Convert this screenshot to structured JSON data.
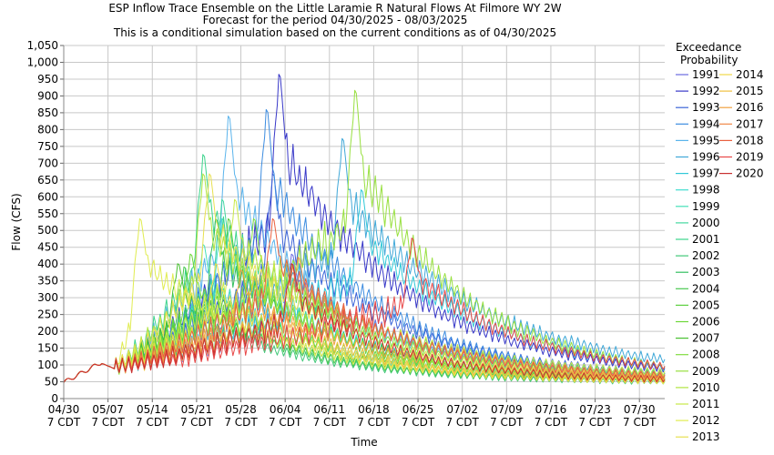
{
  "chart_data": {
    "type": "line",
    "title": "ESP Inflow Trace Ensemble on the Little Laramie R Natural Flows At Filmore WY 2W",
    "subtitle": "Forecast for the period 04/30/2025 - 08/03/2025",
    "subtitle2": "This is a conditional simulation based on the current conditions as of 04/30/2025",
    "xlabel": "Time",
    "ylabel": "Flow (CFS)",
    "xlim": [
      "04/30",
      "08/03"
    ],
    "ylim": [
      0,
      1050
    ],
    "y_ticks": [
      0,
      50,
      100,
      150,
      200,
      250,
      300,
      350,
      400,
      450,
      500,
      550,
      600,
      650,
      700,
      750,
      800,
      850,
      900,
      950,
      1000,
      1050
    ],
    "y_tick_labels": [
      "0",
      "50",
      "100",
      "150",
      "200",
      "250",
      "300",
      "350",
      "400",
      "450",
      "500",
      "550",
      "600",
      "650",
      "700",
      "750",
      "800",
      "850",
      "900",
      "950",
      "1,000",
      "1,050"
    ],
    "x_ticks": [
      {
        "day": 0,
        "label": "04/30",
        "label2": "7 CDT"
      },
      {
        "day": 7,
        "label": "05/07",
        "label2": "7 CDT"
      },
      {
        "day": 14,
        "label": "05/14",
        "label2": "7 CDT"
      },
      {
        "day": 21,
        "label": "05/21",
        "label2": "7 CDT"
      },
      {
        "day": 28,
        "label": "05/28",
        "label2": "7 CDT"
      },
      {
        "day": 35,
        "label": "06/04",
        "label2": "7 CDT"
      },
      {
        "day": 42,
        "label": "06/11",
        "label2": "7 CDT"
      },
      {
        "day": 49,
        "label": "06/18",
        "label2": "7 CDT"
      },
      {
        "day": 56,
        "label": "06/25",
        "label2": "7 CDT"
      },
      {
        "day": 63,
        "label": "07/02",
        "label2": "7 CDT"
      },
      {
        "day": 70,
        "label": "07/09",
        "label2": "7 CDT"
      },
      {
        "day": 77,
        "label": "07/16",
        "label2": "7 CDT"
      },
      {
        "day": 84,
        "label": "07/23",
        "label2": "7 CDT"
      },
      {
        "day": 91,
        "label": "07/30",
        "label2": "7 CDT"
      }
    ],
    "x_max_day": 95,
    "grid": true,
    "legend_title": [
      "Exceedance",
      "Probability"
    ],
    "legend_placement": "right",
    "series": [
      {
        "name": "1991",
        "color": "#6a6ae0",
        "peak_day": 36,
        "peak": 450,
        "start": 95,
        "end": 55
      },
      {
        "name": "1992",
        "color": "#3838c8",
        "peak_day": 34,
        "peak": 1010,
        "start": 95,
        "end": 55
      },
      {
        "name": "1993",
        "color": "#3c64d8",
        "peak_day": 33,
        "peak": 700,
        "start": 95,
        "end": 60
      },
      {
        "name": "1994",
        "color": "#3c8ce0",
        "peak_day": 32,
        "peak": 900,
        "start": 95,
        "end": 55
      },
      {
        "name": "1995",
        "color": "#5ab4ec",
        "peak_day": 26,
        "peak": 880,
        "start": 95,
        "end": 60
      },
      {
        "name": "1996",
        "color": "#40a8d8",
        "peak_day": 44,
        "peak": 810,
        "start": 95,
        "end": 60
      },
      {
        "name": "1997",
        "color": "#30c8d8",
        "peak_day": 47,
        "peak": 650,
        "start": 95,
        "end": 55
      },
      {
        "name": "1998",
        "color": "#40dcd0",
        "peak_day": 25,
        "peak": 560,
        "start": 95,
        "end": 50
      },
      {
        "name": "1999",
        "color": "#44e0b8",
        "peak_day": 22,
        "peak": 480,
        "start": 95,
        "end": 50
      },
      {
        "name": "2000",
        "color": "#44d8a0",
        "peak_day": 25,
        "peak": 620,
        "start": 95,
        "end": 50
      },
      {
        "name": "2001",
        "color": "#3cd48c",
        "peak_day": 22,
        "peak": 760,
        "start": 95,
        "end": 55
      },
      {
        "name": "2002",
        "color": "#40c878",
        "peak_day": 20,
        "peak": 320,
        "start": 95,
        "end": 45
      },
      {
        "name": "2003",
        "color": "#34c060",
        "peak_day": 24,
        "peak": 560,
        "start": 95,
        "end": 55
      },
      {
        "name": "2004",
        "color": "#4ac850",
        "peak_day": 19,
        "peak": 410,
        "start": 95,
        "end": 50
      },
      {
        "name": "2005",
        "color": "#5cd040",
        "peak_day": 26,
        "peak": 560,
        "start": 95,
        "end": 55
      },
      {
        "name": "2006",
        "color": "#6cd838",
        "peak_day": 20,
        "peak": 450,
        "start": 95,
        "end": 50
      },
      {
        "name": "2007",
        "color": "#48c030",
        "peak_day": 18,
        "peak": 420,
        "start": 95,
        "end": 50
      },
      {
        "name": "2008",
        "color": "#80dc40",
        "peak_day": 30,
        "peak": 560,
        "start": 95,
        "end": 55
      },
      {
        "name": "2009",
        "color": "#98e040",
        "peak_day": 46,
        "peak": 960,
        "start": 95,
        "end": 55
      },
      {
        "name": "2010",
        "color": "#b0e440",
        "peak_day": 22,
        "peak": 700,
        "start": 95,
        "end": 55
      },
      {
        "name": "2011",
        "color": "#c8e848",
        "peak_day": 27,
        "peak": 620,
        "start": 95,
        "end": 60
      },
      {
        "name": "2012",
        "color": "#e0ec50",
        "peak_day": 12,
        "peak": 560,
        "start": 95,
        "end": 45
      },
      {
        "name": "2013",
        "color": "#e8e050",
        "peak_day": 23,
        "peak": 700,
        "start": 95,
        "end": 55
      },
      {
        "name": "2014",
        "color": "#f0d848",
        "peak_day": 24,
        "peak": 420,
        "start": 95,
        "end": 50
      },
      {
        "name": "2015",
        "color": "#f0c040",
        "peak_day": 30,
        "peak": 380,
        "start": 95,
        "end": 50
      },
      {
        "name": "2016",
        "color": "#f0a040",
        "peak_day": 28,
        "peak": 400,
        "start": 95,
        "end": 50
      },
      {
        "name": "2017",
        "color": "#f08848",
        "peak_day": 37,
        "peak": 440,
        "start": 95,
        "end": 55
      },
      {
        "name": "2018",
        "color": "#e86040",
        "peak_day": 33,
        "peak": 560,
        "start": 95,
        "end": 55
      },
      {
        "name": "2019",
        "color": "#e84848",
        "peak_day": 55,
        "peak": 500,
        "start": 95,
        "end": 65
      },
      {
        "name": "2020",
        "color": "#c83030",
        "peak_day": 36,
        "peak": 420,
        "start": 95,
        "end": 50
      }
    ]
  }
}
